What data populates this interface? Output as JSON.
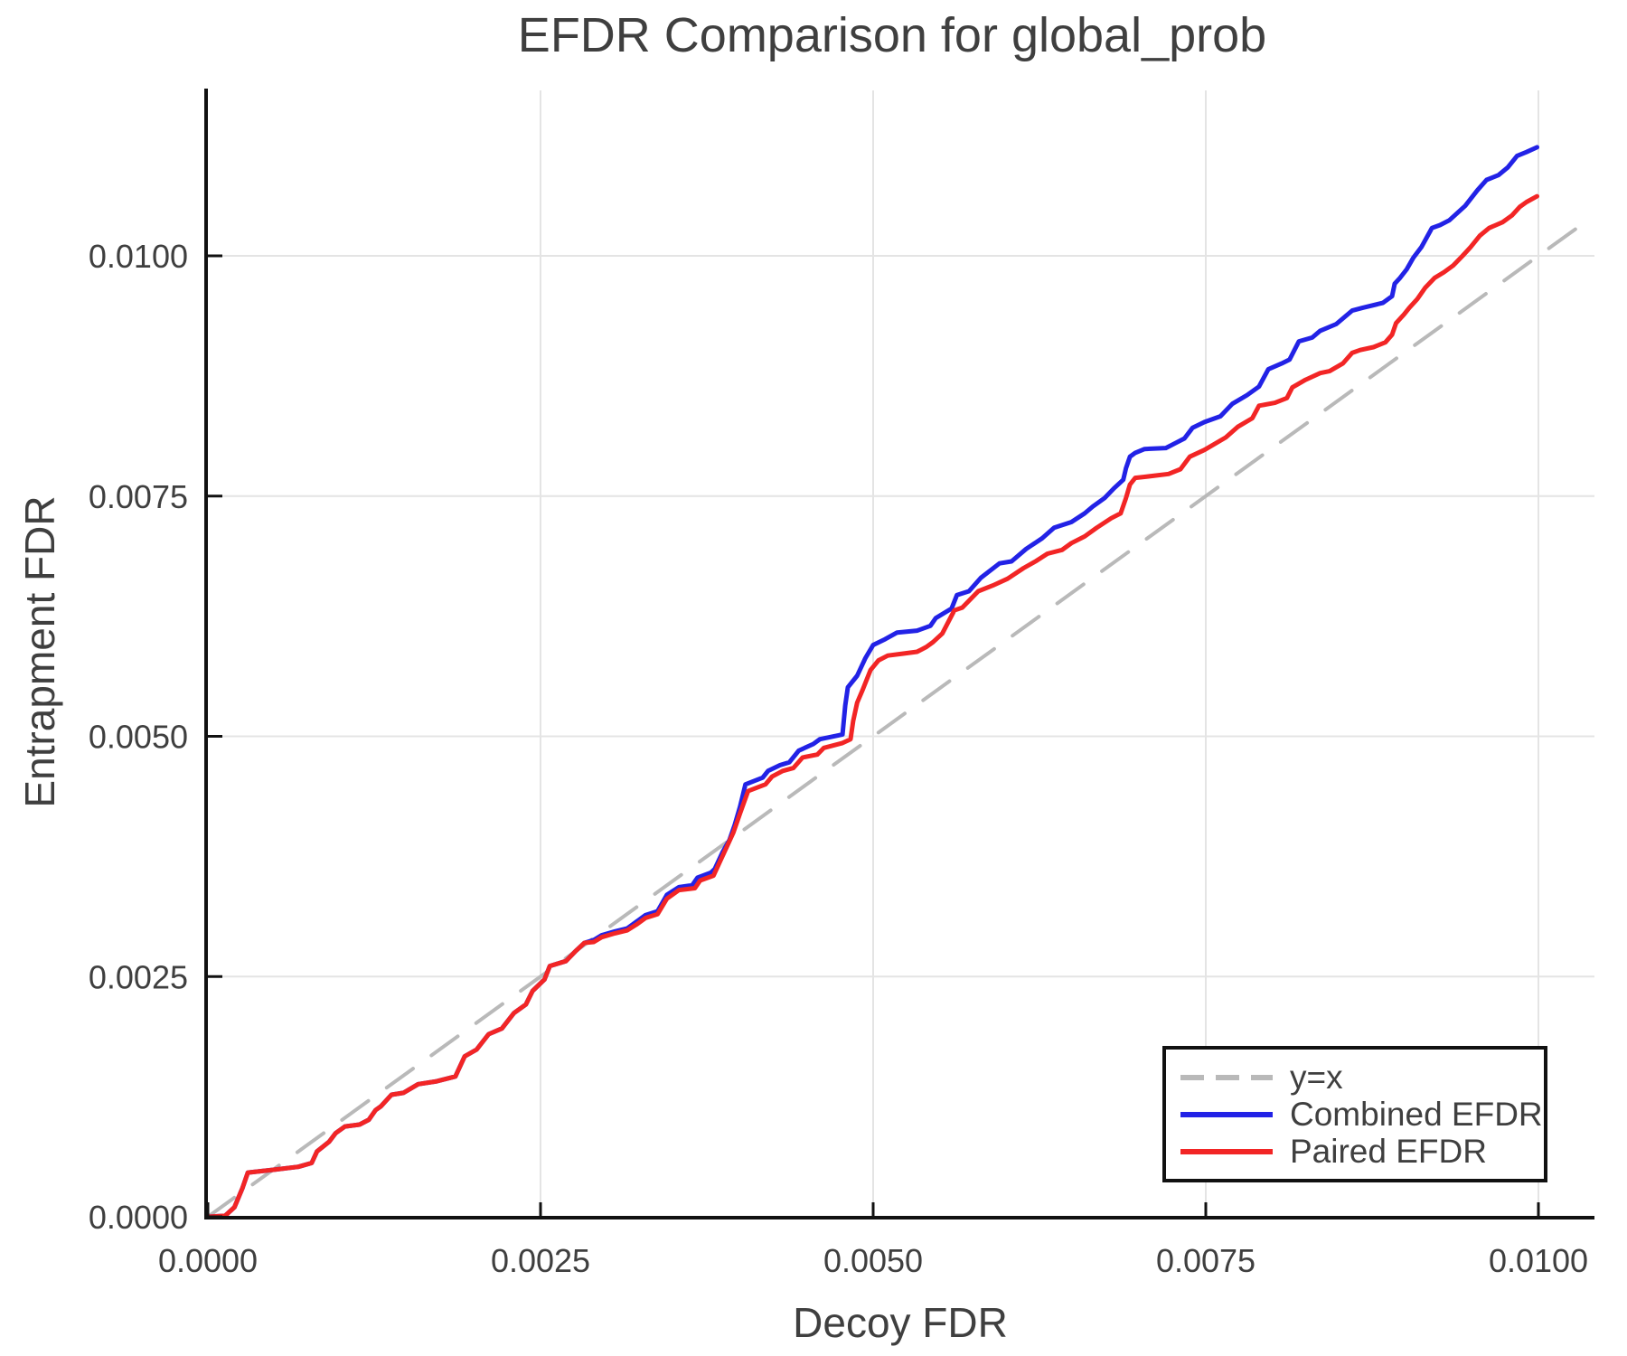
{
  "header": {
    "title": "EFDR Comparison for global_prob"
  },
  "colors": {
    "identity_line": "#b9b9b9",
    "combined_line": "#2222e6",
    "paired_line": "#f22525",
    "grid": "#e4e4e4",
    "axis": "#111111",
    "text": "#3f3f3f"
  },
  "legend": {
    "position": "lower right"
  },
  "chart_data": {
    "type": "line",
    "title": "EFDR Comparison for global_prob",
    "xlabel": "Decoy FDR",
    "ylabel": "Entrapment FDR",
    "xlim": [
      0,
      0.0104
    ],
    "ylim": [
      0,
      0.0117
    ],
    "grid": true,
    "legend_position": "lower right",
    "x_ticks": [
      0,
      0.0025,
      0.005,
      0.0075,
      0.01
    ],
    "x_tick_labels": [
      "0.0000",
      "0.0025",
      "0.0050",
      "0.0075",
      "0.0100"
    ],
    "y_ticks": [
      0,
      0.0025,
      0.005,
      0.0075,
      0.01
    ],
    "y_tick_labels": [
      "0.0000",
      "0.0025",
      "0.0050",
      "0.0075",
      "0.0100"
    ],
    "series": [
      {
        "name": "y=x",
        "color": "#b9b9b9",
        "style": "dashed",
        "width": 4,
        "points": [
          [
            0,
            0
          ],
          [
            0.0104,
            0.0104
          ]
        ]
      },
      {
        "name": "Combined EFDR",
        "color": "#2222e6",
        "style": "solid",
        "width": 5,
        "points": [
          [
            0.0,
            0.0
          ],
          [
            0.00013,
            1e-05
          ],
          [
            0.0002,
            0.0001
          ],
          [
            0.00026,
            0.0003
          ],
          [
            0.0003,
            0.00046
          ],
          [
            0.0005,
            0.00049
          ],
          [
            0.00068,
            0.00052
          ],
          [
            0.00078,
            0.00056
          ],
          [
            0.00082,
            0.00068
          ],
          [
            0.00091,
            0.00078
          ],
          [
            0.00096,
            0.00087
          ],
          [
            0.00103,
            0.00094
          ],
          [
            0.00114,
            0.00096
          ],
          [
            0.00121,
            0.00101
          ],
          [
            0.00126,
            0.00111
          ],
          [
            0.0013,
            0.00115
          ],
          [
            0.00138,
            0.00127
          ],
          [
            0.00147,
            0.00129
          ],
          [
            0.00158,
            0.00138
          ],
          [
            0.00172,
            0.00141
          ],
          [
            0.00186,
            0.00146
          ],
          [
            0.00193,
            0.00167
          ],
          [
            0.00202,
            0.00174
          ],
          [
            0.00211,
            0.0019
          ],
          [
            0.00221,
            0.00196
          ],
          [
            0.0023,
            0.00212
          ],
          [
            0.00239,
            0.00221
          ],
          [
            0.00244,
            0.00235
          ],
          [
            0.00253,
            0.00247
          ],
          [
            0.00257,
            0.00261
          ],
          [
            0.00269,
            0.00266
          ],
          [
            0.00276,
            0.00276
          ],
          [
            0.00283,
            0.00285
          ],
          [
            0.0029,
            0.00288
          ],
          [
            0.00296,
            0.00293
          ],
          [
            0.00306,
            0.00297
          ],
          [
            0.00315,
            0.003
          ],
          [
            0.00322,
            0.00307
          ],
          [
            0.00329,
            0.00314
          ],
          [
            0.00338,
            0.00318
          ],
          [
            0.00345,
            0.00335
          ],
          [
            0.00354,
            0.00343
          ],
          [
            0.00364,
            0.00345
          ],
          [
            0.00368,
            0.00353
          ],
          [
            0.00378,
            0.00358
          ],
          [
            0.00381,
            0.00362
          ],
          [
            0.00387,
            0.0038
          ],
          [
            0.00392,
            0.00392
          ],
          [
            0.00396,
            0.00408
          ],
          [
            0.004,
            0.00427
          ],
          [
            0.00404,
            0.0045
          ],
          [
            0.00417,
            0.00457
          ],
          [
            0.00421,
            0.00464
          ],
          [
            0.0043,
            0.0047
          ],
          [
            0.00437,
            0.00473
          ],
          [
            0.00444,
            0.00485
          ],
          [
            0.00455,
            0.00492
          ],
          [
            0.0046,
            0.00497
          ],
          [
            0.00474,
            0.00501
          ],
          [
            0.00477,
            0.00502
          ],
          [
            0.00479,
            0.00532
          ],
          [
            0.00481,
            0.00551
          ],
          [
            0.00488,
            0.00563
          ],
          [
            0.00494,
            0.00581
          ],
          [
            0.005,
            0.00595
          ],
          [
            0.00509,
            0.00601
          ],
          [
            0.00518,
            0.00608
          ],
          [
            0.00533,
            0.0061
          ],
          [
            0.00543,
            0.00615
          ],
          [
            0.00547,
            0.00623
          ],
          [
            0.00559,
            0.00633
          ],
          [
            0.00563,
            0.00647
          ],
          [
            0.00572,
            0.00651
          ],
          [
            0.00581,
            0.00665
          ],
          [
            0.00595,
            0.0068
          ],
          [
            0.00604,
            0.00682
          ],
          [
            0.00615,
            0.00695
          ],
          [
            0.00627,
            0.00706
          ],
          [
            0.00636,
            0.00717
          ],
          [
            0.00649,
            0.00723
          ],
          [
            0.00659,
            0.00732
          ],
          [
            0.00665,
            0.00739
          ],
          [
            0.00674,
            0.00748
          ],
          [
            0.00681,
            0.00758
          ],
          [
            0.00688,
            0.00767
          ],
          [
            0.0069,
            0.00779
          ],
          [
            0.00693,
            0.00791
          ],
          [
            0.00697,
            0.00795
          ],
          [
            0.00704,
            0.00799
          ],
          [
            0.0072,
            0.008
          ],
          [
            0.00727,
            0.00805
          ],
          [
            0.00734,
            0.0081
          ],
          [
            0.0074,
            0.00821
          ],
          [
            0.00749,
            0.00827
          ],
          [
            0.00761,
            0.00833
          ],
          [
            0.0077,
            0.00846
          ],
          [
            0.00781,
            0.00855
          ],
          [
            0.0079,
            0.00864
          ],
          [
            0.00797,
            0.00882
          ],
          [
            0.00807,
            0.00888
          ],
          [
            0.00813,
            0.00892
          ],
          [
            0.0082,
            0.00911
          ],
          [
            0.0083,
            0.00915
          ],
          [
            0.00836,
            0.00922
          ],
          [
            0.00848,
            0.00929
          ],
          [
            0.0086,
            0.00943
          ],
          [
            0.00868,
            0.00946
          ],
          [
            0.00883,
            0.00951
          ],
          [
            0.0089,
            0.00958
          ],
          [
            0.00892,
            0.00971
          ],
          [
            0.00896,
            0.00977
          ],
          [
            0.00901,
            0.00986
          ],
          [
            0.00906,
            0.00998
          ],
          [
            0.00912,
            0.01009
          ],
          [
            0.0092,
            0.01029
          ],
          [
            0.00926,
            0.01032
          ],
          [
            0.00933,
            0.01037
          ],
          [
            0.00945,
            0.01052
          ],
          [
            0.00954,
            0.01068
          ],
          [
            0.00961,
            0.01079
          ],
          [
            0.0097,
            0.01084
          ],
          [
            0.00977,
            0.01092
          ],
          [
            0.00984,
            0.01104
          ],
          [
            0.00991,
            0.01108
          ],
          [
            0.00999,
            0.01113
          ]
        ]
      },
      {
        "name": "Paired EFDR",
        "color": "#f22525",
        "style": "solid",
        "width": 5,
        "points": [
          [
            0.0,
            0.0
          ],
          [
            0.00013,
            1e-05
          ],
          [
            0.0002,
            0.0001
          ],
          [
            0.00026,
            0.0003
          ],
          [
            0.0003,
            0.00046
          ],
          [
            0.0005,
            0.00049
          ],
          [
            0.00068,
            0.00052
          ],
          [
            0.00078,
            0.00056
          ],
          [
            0.00082,
            0.00068
          ],
          [
            0.00091,
            0.00078
          ],
          [
            0.00096,
            0.00087
          ],
          [
            0.00103,
            0.00094
          ],
          [
            0.00114,
            0.00096
          ],
          [
            0.00121,
            0.00101
          ],
          [
            0.00126,
            0.00111
          ],
          [
            0.0013,
            0.00115
          ],
          [
            0.00138,
            0.00127
          ],
          [
            0.00147,
            0.00129
          ],
          [
            0.00158,
            0.00138
          ],
          [
            0.00172,
            0.00141
          ],
          [
            0.00186,
            0.00146
          ],
          [
            0.00193,
            0.00167
          ],
          [
            0.00202,
            0.00174
          ],
          [
            0.00211,
            0.0019
          ],
          [
            0.00221,
            0.00196
          ],
          [
            0.0023,
            0.00212
          ],
          [
            0.00239,
            0.00221
          ],
          [
            0.00244,
            0.00235
          ],
          [
            0.00253,
            0.00247
          ],
          [
            0.00257,
            0.00261
          ],
          [
            0.00269,
            0.00266
          ],
          [
            0.00276,
            0.00276
          ],
          [
            0.00283,
            0.00285
          ],
          [
            0.0029,
            0.00286
          ],
          [
            0.00296,
            0.00291
          ],
          [
            0.00306,
            0.00295
          ],
          [
            0.00315,
            0.00298
          ],
          [
            0.00322,
            0.00304
          ],
          [
            0.00329,
            0.00311
          ],
          [
            0.00338,
            0.00315
          ],
          [
            0.00345,
            0.00331
          ],
          [
            0.00354,
            0.0034
          ],
          [
            0.00366,
            0.00342
          ],
          [
            0.0037,
            0.0035
          ],
          [
            0.0038,
            0.00355
          ],
          [
            0.00385,
            0.0037
          ],
          [
            0.0039,
            0.00385
          ],
          [
            0.00395,
            0.004
          ],
          [
            0.004,
            0.0042
          ],
          [
            0.00406,
            0.00443
          ],
          [
            0.00419,
            0.0045
          ],
          [
            0.00424,
            0.00458
          ],
          [
            0.00432,
            0.00464
          ],
          [
            0.0044,
            0.00467
          ],
          [
            0.00447,
            0.00478
          ],
          [
            0.00458,
            0.00481
          ],
          [
            0.00463,
            0.00488
          ],
          [
            0.00477,
            0.00493
          ],
          [
            0.00483,
            0.00497
          ],
          [
            0.00485,
            0.00516
          ],
          [
            0.00488,
            0.00535
          ],
          [
            0.00492,
            0.00548
          ],
          [
            0.00498,
            0.00569
          ],
          [
            0.00504,
            0.00579
          ],
          [
            0.00511,
            0.00584
          ],
          [
            0.00522,
            0.00586
          ],
          [
            0.00533,
            0.00588
          ],
          [
            0.0054,
            0.00593
          ],
          [
            0.00545,
            0.00598
          ],
          [
            0.00552,
            0.00607
          ],
          [
            0.00561,
            0.00631
          ],
          [
            0.00567,
            0.00634
          ],
          [
            0.00579,
            0.00651
          ],
          [
            0.0059,
            0.00657
          ],
          [
            0.00601,
            0.00664
          ],
          [
            0.00613,
            0.00675
          ],
          [
            0.00622,
            0.00682
          ],
          [
            0.00631,
            0.0069
          ],
          [
            0.00642,
            0.00694
          ],
          [
            0.00649,
            0.00701
          ],
          [
            0.00659,
            0.00708
          ],
          [
            0.00668,
            0.00717
          ],
          [
            0.00679,
            0.00727
          ],
          [
            0.00686,
            0.00732
          ],
          [
            0.0069,
            0.00748
          ],
          [
            0.00693,
            0.00762
          ],
          [
            0.00697,
            0.00769
          ],
          [
            0.00704,
            0.0077
          ],
          [
            0.00722,
            0.00773
          ],
          [
            0.00731,
            0.00778
          ],
          [
            0.00738,
            0.00791
          ],
          [
            0.00749,
            0.00798
          ],
          [
            0.00765,
            0.00811
          ],
          [
            0.00774,
            0.00822
          ],
          [
            0.00785,
            0.00831
          ],
          [
            0.0079,
            0.00844
          ],
          [
            0.00802,
            0.00847
          ],
          [
            0.00811,
            0.00852
          ],
          [
            0.00815,
            0.00863
          ],
          [
            0.00825,
            0.00871
          ],
          [
            0.00836,
            0.00878
          ],
          [
            0.00843,
            0.0088
          ],
          [
            0.00853,
            0.00888
          ],
          [
            0.0086,
            0.00899
          ],
          [
            0.00866,
            0.00902
          ],
          [
            0.00876,
            0.00905
          ],
          [
            0.00885,
            0.0091
          ],
          [
            0.0089,
            0.00918
          ],
          [
            0.00893,
            0.0093
          ],
          [
            0.00899,
            0.00939
          ],
          [
            0.00903,
            0.00946
          ],
          [
            0.00909,
            0.00955
          ],
          [
            0.00915,
            0.00967
          ],
          [
            0.00922,
            0.00977
          ],
          [
            0.00929,
            0.00983
          ],
          [
            0.00936,
            0.0099
          ],
          [
            0.00943,
            0.01
          ],
          [
            0.00949,
            0.01009
          ],
          [
            0.00956,
            0.01021
          ],
          [
            0.00963,
            0.01029
          ],
          [
            0.00973,
            0.01035
          ],
          [
            0.0098,
            0.01042
          ],
          [
            0.00986,
            0.01051
          ],
          [
            0.00991,
            0.01056
          ],
          [
            0.00999,
            0.01062
          ]
        ]
      }
    ]
  }
}
